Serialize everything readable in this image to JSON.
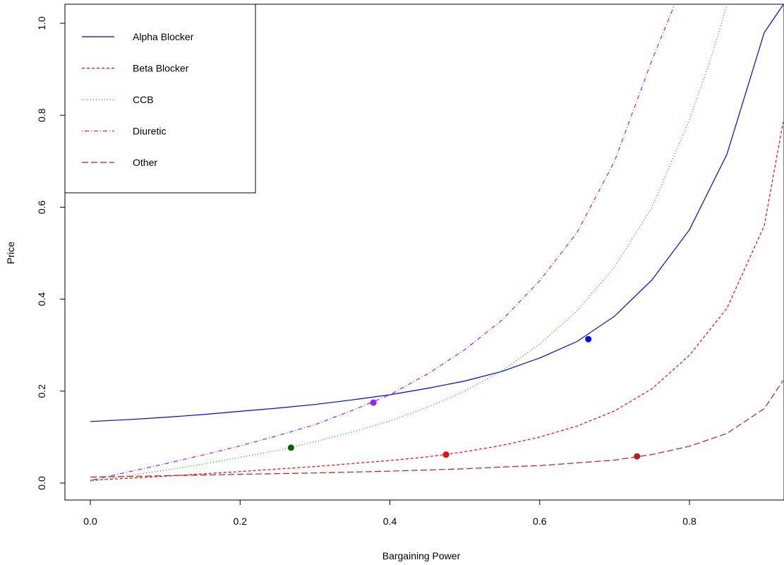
{
  "chart_data": {
    "type": "line",
    "title": "",
    "xlabel": "Bargaining Power",
    "ylabel": "Price",
    "xlim": [
      -0.04,
      0.925
    ],
    "ylim": [
      -0.04,
      1.04
    ],
    "x_ticks": [
      0.0,
      0.2,
      0.4,
      0.6,
      0.8
    ],
    "x_tick_labels": [
      "0.0",
      "0.2",
      "0.4",
      "0.6",
      "0.8"
    ],
    "y_ticks": [
      0.0,
      0.2,
      0.4,
      0.6,
      0.8,
      1.0
    ],
    "y_tick_labels": [
      "0.0",
      "0.2",
      "0.4",
      "0.6",
      "0.8",
      "1.0"
    ],
    "grid": false,
    "legend_position": "top-left",
    "series": [
      {
        "name": "Alpha Blocker",
        "color": "#0000ff",
        "line_style": "solid",
        "x": [
          0.0,
          0.05,
          0.1,
          0.15,
          0.2,
          0.25,
          0.3,
          0.35,
          0.4,
          0.45,
          0.5,
          0.55,
          0.6,
          0.65,
          0.7,
          0.75,
          0.8,
          0.85,
          0.9,
          0.925
        ],
        "y": [
          0.134,
          0.138,
          0.143,
          0.149,
          0.156,
          0.163,
          0.171,
          0.181,
          0.192,
          0.206,
          0.222,
          0.243,
          0.272,
          0.308,
          0.363,
          0.442,
          0.551,
          0.715,
          0.98,
          1.04
        ],
        "marker": {
          "x": 0.665,
          "y": 0.313,
          "color": "#0000ff"
        }
      },
      {
        "name": "Beta Blocker",
        "color": "#ff0000",
        "line_style": "dashed",
        "x": [
          0.0,
          0.1,
          0.2,
          0.3,
          0.4,
          0.45,
          0.5,
          0.55,
          0.6,
          0.65,
          0.7,
          0.75,
          0.8,
          0.85,
          0.9,
          0.925
        ],
        "y": [
          0.006,
          0.015,
          0.025,
          0.036,
          0.049,
          0.057,
          0.068,
          0.082,
          0.1,
          0.124,
          0.157,
          0.205,
          0.278,
          0.38,
          0.56,
          0.785
        ],
        "marker": {
          "x": 0.475,
          "y": 0.062,
          "color": "#ff0000"
        }
      },
      {
        "name": "CCB",
        "color": "#00aa00",
        "line_style": "dotted",
        "x": [
          0.0,
          0.05,
          0.1,
          0.15,
          0.2,
          0.25,
          0.3,
          0.35,
          0.4,
          0.45,
          0.5,
          0.55,
          0.6,
          0.65,
          0.7,
          0.75,
          0.8,
          0.83,
          0.85
        ],
        "y": [
          0.004,
          0.016,
          0.028,
          0.041,
          0.056,
          0.071,
          0.09,
          0.111,
          0.135,
          0.165,
          0.2,
          0.245,
          0.302,
          0.375,
          0.47,
          0.6,
          0.79,
          0.93,
          1.04
        ],
        "marker": {
          "x": 0.268,
          "y": 0.077,
          "color": "#006400"
        }
      },
      {
        "name": "Diuretic",
        "color": "#a020f0",
        "line_style": "dotdash",
        "x": [
          0.0,
          0.05,
          0.1,
          0.15,
          0.2,
          0.25,
          0.3,
          0.35,
          0.4,
          0.45,
          0.5,
          0.55,
          0.6,
          0.65,
          0.7,
          0.75,
          0.78
        ],
        "y": [
          0.006,
          0.024,
          0.042,
          0.061,
          0.081,
          0.103,
          0.127,
          0.158,
          0.192,
          0.237,
          0.29,
          0.355,
          0.44,
          0.545,
          0.7,
          0.92,
          1.04
        ],
        "marker": {
          "x": 0.378,
          "y": 0.175,
          "color": "#a020f0"
        }
      },
      {
        "name": "Other",
        "color": "#b22222",
        "line_style": "longdash",
        "x": [
          0.0,
          0.1,
          0.2,
          0.3,
          0.4,
          0.5,
          0.55,
          0.6,
          0.65,
          0.7,
          0.75,
          0.8,
          0.85,
          0.9,
          0.925
        ],
        "y": [
          0.013,
          0.016,
          0.019,
          0.022,
          0.026,
          0.031,
          0.035,
          0.038,
          0.044,
          0.05,
          0.062,
          0.08,
          0.108,
          0.162,
          0.223
        ],
        "marker": {
          "x": 0.73,
          "y": 0.058,
          "color": "#b22222"
        }
      }
    ]
  }
}
